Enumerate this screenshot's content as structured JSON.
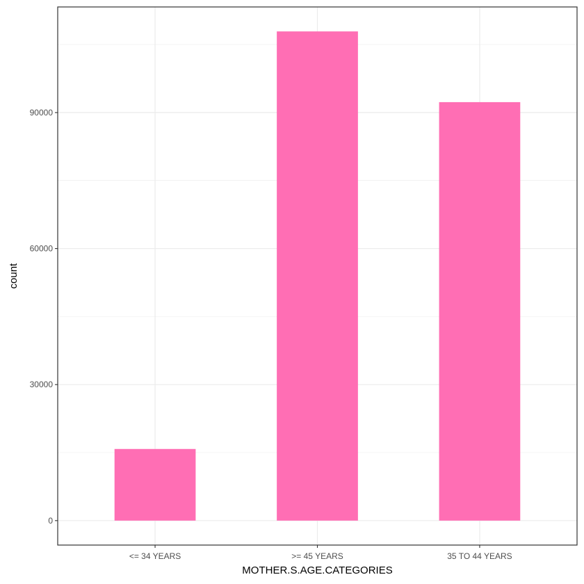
{
  "chart_data": {
    "type": "bar",
    "categories": [
      "<= 34 YEARS",
      ">= 45 YEARS",
      "35 TO 44 YEARS"
    ],
    "values": [
      15800,
      107900,
      92300
    ],
    "xlabel": "MOTHER.S.AGE.CATEGORIES",
    "ylabel": "count",
    "ylim": [
      -5395,
      113295
    ],
    "yticks": [
      0,
      30000,
      60000,
      90000
    ],
    "yticks_labels": [
      "0",
      "30000",
      "60000",
      "90000"
    ],
    "grid": true,
    "colors": {
      "bar": "#FF6EB4",
      "grid": "#EBEBEB",
      "frame": "#333333"
    }
  }
}
